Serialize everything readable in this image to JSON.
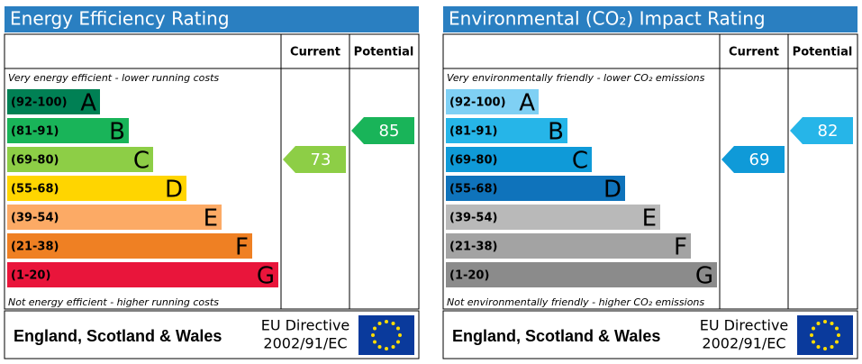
{
  "chart_data": [
    {
      "type": "epc",
      "title": "Energy Efficiency Rating",
      "columns": [
        "Current",
        "Potential"
      ],
      "top_note": "Very energy efficient - lower running costs",
      "bottom_note": "Not energy efficient - higher running costs",
      "bands": [
        {
          "range": "(92-100)",
          "letter": "A",
          "color": "#008054"
        },
        {
          "range": "(81-91)",
          "letter": "B",
          "color": "#19b459"
        },
        {
          "range": "(69-80)",
          "letter": "C",
          "color": "#8dce46"
        },
        {
          "range": "(55-68)",
          "letter": "D",
          "color": "#ffd500"
        },
        {
          "range": "(39-54)",
          "letter": "E",
          "color": "#fcaa65"
        },
        {
          "range": "(21-38)",
          "letter": "F",
          "color": "#ef8023"
        },
        {
          "range": "(1-20)",
          "letter": "G",
          "color": "#e9153b"
        }
      ],
      "current": {
        "value": 73,
        "color": "#8dce46"
      },
      "potential": {
        "value": 85,
        "color": "#19b459"
      },
      "footer": {
        "region": "England, Scotland & Wales",
        "directive": "EU Directive",
        "code": "2002/91/EC"
      }
    },
    {
      "type": "epc",
      "title": "Environmental (CO₂) Impact Rating",
      "columns": [
        "Current",
        "Potential"
      ],
      "top_note": "Very environmentally friendly - lower CO₂ emissions",
      "bottom_note": "Not environmentally friendly - higher CO₂ emissions",
      "bands": [
        {
          "range": "(92-100)",
          "letter": "A",
          "color": "#7fd0f4"
        },
        {
          "range": "(81-91)",
          "letter": "B",
          "color": "#26b5e8"
        },
        {
          "range": "(69-80)",
          "letter": "C",
          "color": "#0f9ad8"
        },
        {
          "range": "(55-68)",
          "letter": "D",
          "color": "#0f73bb"
        },
        {
          "range": "(39-54)",
          "letter": "E",
          "color": "#b9b9b9"
        },
        {
          "range": "(21-38)",
          "letter": "F",
          "color": "#a3a3a3"
        },
        {
          "range": "(1-20)",
          "letter": "G",
          "color": "#8b8b8b"
        }
      ],
      "current": {
        "value": 69,
        "color": "#0f9ad8"
      },
      "potential": {
        "value": 82,
        "color": "#26b5e8"
      },
      "footer": {
        "region": "England, Scotland & Wales",
        "directive": "EU Directive",
        "code": "2002/91/EC"
      }
    }
  ]
}
